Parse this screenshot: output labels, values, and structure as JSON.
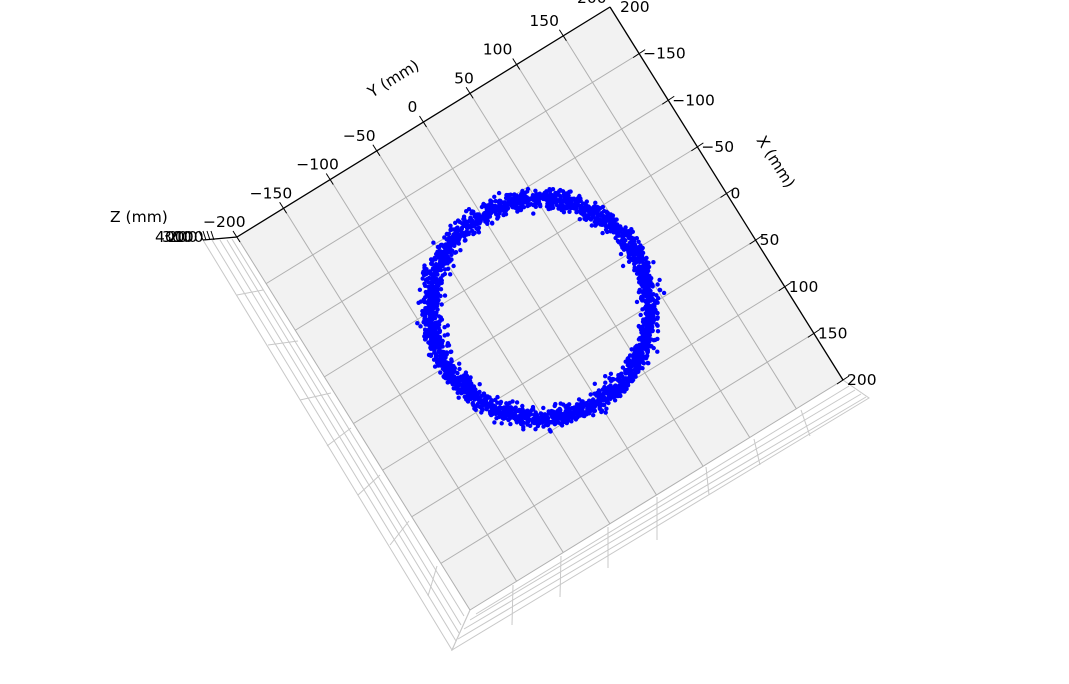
{
  "chart_data": {
    "type": "scatter",
    "projection": "3d",
    "title": "",
    "xlabel": "X (mm)",
    "ylabel": "Y (mm)",
    "zlabel": "Z (mm)",
    "xlim": [
      -200,
      200
    ],
    "ylim": [
      -200,
      200
    ],
    "x_ticks": [
      0,
      50,
      100,
      150,
      200
    ],
    "x_tick_labels": [
      "0",
      "50",
      "100",
      "150",
      "200"
    ],
    "x_tick_labels_negative": [
      "−50",
      "−100",
      "−150"
    ],
    "y_ticks": [
      -200,
      -150,
      -100,
      -50,
      0,
      50,
      100,
      150
    ],
    "y_tick_labels": [
      "−200",
      "−150",
      "−100",
      "−50",
      "0",
      "50",
      "100",
      "150"
    ],
    "z_tick_labels_overlapping": [
      "400",
      "300",
      "200",
      "100"
    ],
    "grid": true,
    "series": [
      {
        "name": "ring",
        "color": "#0000ff",
        "shape": "ring",
        "center_x": 0,
        "center_y": 0,
        "mean_radius": 100,
        "radial_spread": 8
      }
    ]
  },
  "colors": {
    "pane": "#f2f2f2",
    "grid": "#b0b0b0",
    "axis": "#000000",
    "points": "#0000ff"
  }
}
